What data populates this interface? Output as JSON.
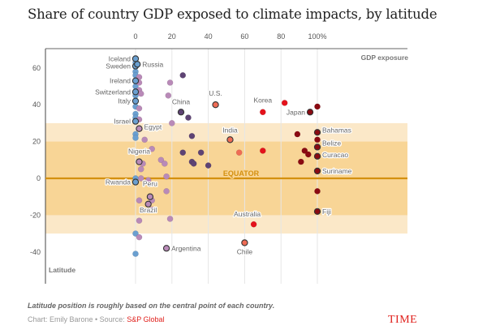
{
  "title": "Share of country GDP exposed to climate impacts, by latitude",
  "footer": {
    "note": "Latitude position is roughly based on the central point of each country.",
    "credit_prefix": "Chart: Emily Barone • Source: ",
    "source": "S&P Global",
    "logo": "TIME"
  },
  "chart_data": {
    "type": "scatter",
    "title": "Share of country GDP exposed to climate impacts, by latitude",
    "xlabel": "GDP exposure",
    "ylabel": "Latitude",
    "xlim": [
      0,
      100
    ],
    "ylim": [
      -50,
      70
    ],
    "x_ticks": [
      "0",
      "20",
      "40",
      "60",
      "80",
      "100%"
    ],
    "x_tick_values": [
      0,
      20,
      40,
      60,
      80,
      100
    ],
    "y_ticks": [
      "60",
      "40",
      "20",
      "0",
      "-20",
      "-40"
    ],
    "y_tick_values": [
      60,
      40,
      20,
      0,
      -20,
      -40
    ],
    "bands": [
      {
        "from": -30,
        "to": 30,
        "color": "#fbe8c8"
      },
      {
        "from": -20,
        "to": 20,
        "color": "#f8d596"
      }
    ],
    "equator": {
      "label": "EQUATOR",
      "value": 0,
      "color": "#d4900f"
    },
    "color_scale": [
      "#6a9fd0",
      "#b98ab8",
      "#5e4374",
      "#ef6c55",
      "#e4121b",
      "#8a0a12"
    ],
    "points": [
      {
        "name": "Iceland",
        "x": 0,
        "y": 65,
        "label": true,
        "outline": true
      },
      {
        "name": "Sweden",
        "x": 0,
        "y": 61,
        "label": true,
        "outline": true
      },
      {
        "name": "Russia",
        "x": 1,
        "y": 62,
        "label": true,
        "outline": true
      },
      {
        "name": "Ireland",
        "x": 0,
        "y": 53,
        "label": true,
        "outline": true
      },
      {
        "name": "Switzerland",
        "x": 0,
        "y": 47,
        "label": true,
        "outline": true
      },
      {
        "name": "Italy",
        "x": 0,
        "y": 42,
        "label": true,
        "outline": true
      },
      {
        "name": "Israel",
        "x": 0,
        "y": 31,
        "label": true,
        "outline": true
      },
      {
        "name": "Egypt",
        "x": 2,
        "y": 27,
        "label": true,
        "outline": true
      },
      {
        "name": "Nigeria",
        "x": 2,
        "y": 9,
        "label": true,
        "outline": true
      },
      {
        "name": "Rwanda",
        "x": 0,
        "y": -2,
        "label": true,
        "outline": true
      },
      {
        "name": "Peru",
        "x": 8,
        "y": -10,
        "label": true,
        "outline": true
      },
      {
        "name": "Brazil",
        "x": 7,
        "y": -14,
        "label": true,
        "outline": true
      },
      {
        "name": "Argentina",
        "x": 17,
        "y": -38,
        "label": true,
        "outline": true
      },
      {
        "name": "China",
        "x": 25,
        "y": 36,
        "label": true,
        "outline": true
      },
      {
        "name": "U.S.",
        "x": 44,
        "y": 40,
        "label": true,
        "outline": true
      },
      {
        "name": "India",
        "x": 52,
        "y": 21,
        "label": true,
        "outline": true
      },
      {
        "name": "Korea",
        "x": 70,
        "y": 36,
        "label": true,
        "outline": false
      },
      {
        "name": "Japan",
        "x": 96,
        "y": 36,
        "label": true,
        "outline": true
      },
      {
        "name": "Bahamas",
        "x": 100,
        "y": 25,
        "label": true,
        "outline": true
      },
      {
        "name": "Belize",
        "x": 100,
        "y": 17,
        "label": true,
        "outline": true
      },
      {
        "name": "Curacao",
        "x": 100,
        "y": 12,
        "label": true,
        "outline": true
      },
      {
        "name": "Suriname",
        "x": 100,
        "y": 4,
        "label": true,
        "outline": true
      },
      {
        "name": "Fiji",
        "x": 100,
        "y": -18,
        "label": true,
        "outline": true
      },
      {
        "name": "Australia",
        "x": 65,
        "y": -25,
        "label": true,
        "outline": false
      },
      {
        "name": "Chile",
        "x": 60,
        "y": -35,
        "label": true,
        "outline": true
      },
      {
        "name": "",
        "x": 0,
        "y": 63
      },
      {
        "name": "",
        "x": 0,
        "y": 58
      },
      {
        "name": "",
        "x": 0,
        "y": 56
      },
      {
        "name": "",
        "x": 0,
        "y": 50
      },
      {
        "name": "",
        "x": 0,
        "y": 45
      },
      {
        "name": "",
        "x": 0,
        "y": 39
      },
      {
        "name": "",
        "x": 0,
        "y": 35
      },
      {
        "name": "",
        "x": 0,
        "y": 33
      },
      {
        "name": "",
        "x": 0,
        "y": 24
      },
      {
        "name": "",
        "x": 0,
        "y": 22
      },
      {
        "name": "",
        "x": 0,
        "y": 0
      },
      {
        "name": "",
        "x": 0,
        "y": -30
      },
      {
        "name": "",
        "x": 0,
        "y": -41
      },
      {
        "name": "",
        "x": 2,
        "y": 55
      },
      {
        "name": "",
        "x": 2,
        "y": 52
      },
      {
        "name": "",
        "x": 2,
        "y": 48
      },
      {
        "name": "",
        "x": 3,
        "y": 46
      },
      {
        "name": "",
        "x": 2,
        "y": 38
      },
      {
        "name": "",
        "x": 2,
        "y": 32
      },
      {
        "name": "",
        "x": 5,
        "y": 21
      },
      {
        "name": "",
        "x": 9,
        "y": 16
      },
      {
        "name": "",
        "x": 4,
        "y": 8
      },
      {
        "name": "",
        "x": 3,
        "y": 5
      },
      {
        "name": "",
        "x": 3,
        "y": 0
      },
      {
        "name": "",
        "x": 7,
        "y": -1
      },
      {
        "name": "",
        "x": 2,
        "y": -12
      },
      {
        "name": "",
        "x": 9,
        "y": -12
      },
      {
        "name": "",
        "x": 9,
        "y": -17
      },
      {
        "name": "",
        "x": 2,
        "y": -23
      },
      {
        "name": "",
        "x": 19,
        "y": -22
      },
      {
        "name": "",
        "x": 2,
        "y": -32
      },
      {
        "name": "",
        "x": 14,
        "y": 10
      },
      {
        "name": "",
        "x": 16,
        "y": 8
      },
      {
        "name": "",
        "x": 17,
        "y": 1
      },
      {
        "name": "",
        "x": 17,
        "y": -7
      },
      {
        "name": "",
        "x": 18,
        "y": 45
      },
      {
        "name": "",
        "x": 19,
        "y": 52
      },
      {
        "name": "",
        "x": 26,
        "y": 56
      },
      {
        "name": "",
        "x": 20,
        "y": 30
      },
      {
        "name": "",
        "x": 29,
        "y": 33
      },
      {
        "name": "",
        "x": 31,
        "y": 23
      },
      {
        "name": "",
        "x": 26,
        "y": 14
      },
      {
        "name": "",
        "x": 31,
        "y": 9
      },
      {
        "name": "",
        "x": 32,
        "y": 8
      },
      {
        "name": "",
        "x": 36,
        "y": 14
      },
      {
        "name": "",
        "x": 40,
        "y": 7
      },
      {
        "name": "",
        "x": 57,
        "y": 14
      },
      {
        "name": "",
        "x": 70,
        "y": 15
      },
      {
        "name": "",
        "x": 82,
        "y": 41
      },
      {
        "name": "",
        "x": 100,
        "y": 39
      },
      {
        "name": "",
        "x": 89,
        "y": 24
      },
      {
        "name": "",
        "x": 100,
        "y": 21
      },
      {
        "name": "",
        "x": 93,
        "y": 15
      },
      {
        "name": "",
        "x": 95,
        "y": 13
      },
      {
        "name": "",
        "x": 91,
        "y": 9
      },
      {
        "name": "",
        "x": 100,
        "y": -7
      }
    ]
  }
}
